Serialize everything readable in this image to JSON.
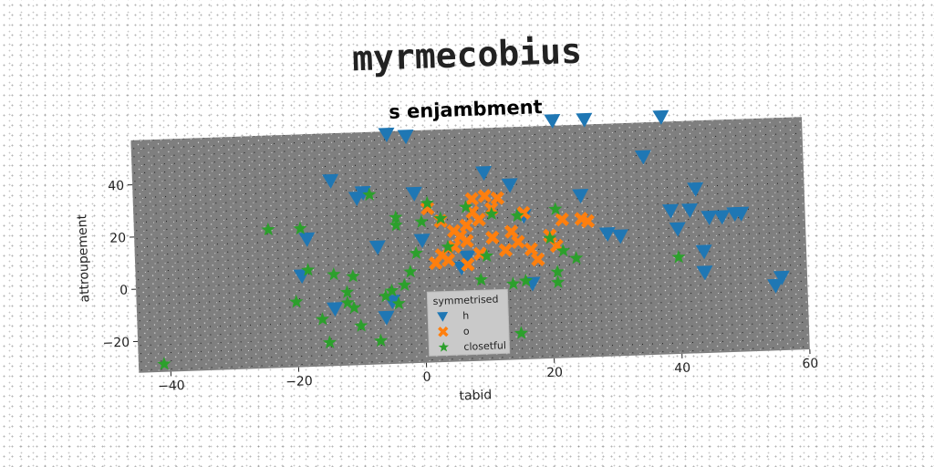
{
  "figure": {
    "suptitle": "myrmecobius"
  },
  "chart_data": {
    "type": "scatter",
    "title": "s enjambment",
    "xlabel": "tabid",
    "ylabel": "attroupement",
    "xlim": [
      -45,
      60
    ],
    "ylim": [
      -32,
      57
    ],
    "xticks": [
      -40,
      -20,
      0,
      20,
      40,
      60
    ],
    "yticks": [
      -20,
      0,
      20,
      40
    ],
    "background": "#7f7f7f",
    "grid": false,
    "legend": {
      "title": "symmetrised",
      "placement": "lower center"
    },
    "series": [
      {
        "name": "h",
        "marker": "triangle_down",
        "color": "#1f77b4",
        "points": [
          [
            -19,
            3
          ],
          [
            -18,
            17
          ],
          [
            -14,
            39
          ],
          [
            -14,
            -10
          ],
          [
            -10,
            32
          ],
          [
            -9,
            34
          ],
          [
            -7,
            13
          ],
          [
            -6,
            -14
          ],
          [
            -5,
            -8
          ],
          [
            -5,
            56
          ],
          [
            -2,
            55
          ],
          [
            -1,
            33
          ],
          [
            0,
            15
          ],
          [
            6,
            4
          ],
          [
            7,
            8
          ],
          [
            10,
            40
          ],
          [
            14,
            35
          ],
          [
            16,
            23
          ],
          [
            17,
            -3
          ],
          [
            21,
            59
          ],
          [
            25,
            30
          ],
          [
            26,
            59
          ],
          [
            29,
            15
          ],
          [
            31,
            14
          ],
          [
            35,
            44
          ],
          [
            38,
            59
          ],
          [
            39,
            23
          ],
          [
            40,
            16
          ],
          [
            42,
            23
          ],
          [
            43,
            31
          ],
          [
            44,
            -1
          ],
          [
            45,
            20
          ],
          [
            47,
            20
          ],
          [
            49,
            21
          ],
          [
            50,
            21
          ],
          [
            44,
            7
          ],
          [
            55,
            -7
          ],
          [
            56,
            -4
          ]
        ]
      },
      {
        "name": "o",
        "marker": "x",
        "color": "#ff7f0e",
        "points": [
          [
            1,
            27
          ],
          [
            2,
            6
          ],
          [
            3,
            22
          ],
          [
            3,
            9
          ],
          [
            4,
            7
          ],
          [
            5,
            12
          ],
          [
            6,
            16
          ],
          [
            7,
            20
          ],
          [
            7,
            14
          ],
          [
            7,
            5
          ],
          [
            8,
            30
          ],
          [
            8,
            25
          ],
          [
            9,
            9
          ],
          [
            10,
            31
          ],
          [
            11,
            26
          ],
          [
            11,
            15
          ],
          [
            12,
            30
          ],
          [
            13,
            10
          ],
          [
            14,
            17
          ],
          [
            15,
            13
          ],
          [
            16,
            24
          ],
          [
            17,
            10
          ],
          [
            18,
            6
          ],
          [
            20,
            15
          ],
          [
            21,
            11
          ],
          [
            22,
            21
          ],
          [
            25,
            21
          ],
          [
            26,
            20
          ],
          [
            5,
            18
          ],
          [
            9,
            22
          ]
        ]
      },
      {
        "name": "closetful",
        "marker": "star",
        "color": "#2ca02c",
        "points": [
          [
            -41,
            -29
          ],
          [
            -24,
            21
          ],
          [
            -20,
            -7
          ],
          [
            -19,
            21
          ],
          [
            -18,
            5
          ],
          [
            -16,
            -14
          ],
          [
            -15,
            -23
          ],
          [
            -14,
            3
          ],
          [
            -12,
            -4
          ],
          [
            -11,
            2
          ],
          [
            -12,
            -8
          ],
          [
            -11,
            -10
          ],
          [
            -10,
            -17
          ],
          [
            -8,
            33
          ],
          [
            -7,
            -23
          ],
          [
            -6,
            -6
          ],
          [
            -5,
            -4
          ],
          [
            -4,
            -9
          ],
          [
            -4,
            24
          ],
          [
            -4,
            21
          ],
          [
            -3,
            -2
          ],
          [
            -2,
            3
          ],
          [
            -1,
            10
          ],
          [
            0,
            22
          ],
          [
            1,
            29
          ],
          [
            3,
            23
          ],
          [
            4,
            12
          ],
          [
            7,
            27
          ],
          [
            9,
            -1
          ],
          [
            10,
            8
          ],
          [
            11,
            24
          ],
          [
            14,
            -3
          ],
          [
            15,
            23
          ],
          [
            15,
            -22
          ],
          [
            16,
            -2
          ],
          [
            20,
            14
          ],
          [
            21,
            25
          ],
          [
            21,
            -3
          ],
          [
            21,
            1
          ],
          [
            22,
            9
          ],
          [
            24,
            6
          ],
          [
            40,
            5
          ]
        ]
      }
    ]
  }
}
